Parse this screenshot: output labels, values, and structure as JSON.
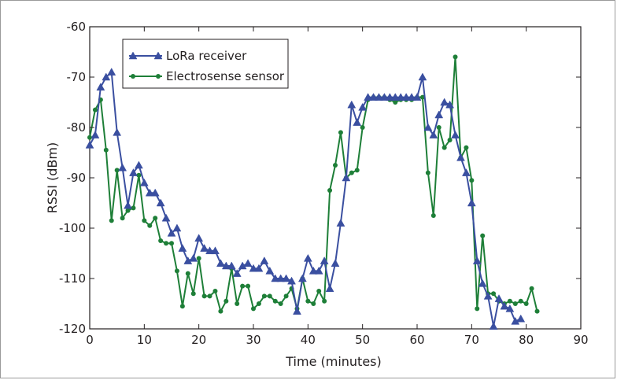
{
  "chart_data": {
    "type": "line",
    "title": "",
    "xlabel": "Time (minutes)",
    "ylabel": "RSSI (dBm)",
    "xlim": [
      0,
      90
    ],
    "ylim": [
      -120,
      -60
    ],
    "xticks": [
      0,
      10,
      20,
      30,
      40,
      50,
      60,
      70,
      80,
      90
    ],
    "yticks": [
      -60,
      -70,
      -80,
      -90,
      -100,
      -110,
      -120
    ],
    "grid": false,
    "legend_position": "top-left",
    "series": [
      {
        "name": "LoRa receiver",
        "color": "#3a4fa0",
        "marker": "triangle",
        "x": [
          0,
          1,
          2,
          3,
          4,
          5,
          6,
          7,
          8,
          9,
          10,
          11,
          12,
          13,
          14,
          15,
          16,
          17,
          18,
          19,
          20,
          21,
          22,
          23,
          24,
          25,
          26,
          27,
          28,
          29,
          30,
          31,
          32,
          33,
          34,
          35,
          36,
          37,
          38,
          39,
          40,
          41,
          42,
          43,
          44,
          45,
          46,
          47,
          48,
          49,
          50,
          51,
          52,
          53,
          54,
          55,
          56,
          57,
          58,
          59,
          60,
          61,
          62,
          63,
          64,
          65,
          66,
          67,
          68,
          69,
          70,
          71,
          72,
          73,
          74,
          75,
          76,
          77,
          78,
          79
        ],
        "y": [
          -83.5,
          -81.5,
          -72,
          -70,
          -69,
          -81,
          -88,
          -95.5,
          -89,
          -87.5,
          -91,
          -93,
          -93,
          -95,
          -98,
          -101,
          -100,
          -104,
          -106.5,
          -106,
          -102,
          -104,
          -104.5,
          -104.5,
          -107,
          -107.5,
          -107.5,
          -109,
          -107.5,
          -107,
          -108,
          -108,
          -106.5,
          -108.5,
          -110,
          -110,
          -110,
          -110.5,
          -116.5,
          -110,
          -106,
          -108.5,
          -108.5,
          -106.5,
          -112,
          -107,
          -99,
          -90,
          -75.5,
          -79,
          -76,
          -74,
          -74,
          -74,
          -74,
          -74,
          -74,
          -74,
          -74,
          -74,
          -74,
          -70,
          -80,
          -81.5,
          -77.5,
          -75,
          -75.5,
          -81.5,
          -86,
          -89,
          -95,
          -106.5,
          -111,
          -113.5,
          -119.5,
          -114,
          -115.5,
          -116,
          -118.5,
          -118
        ]
      },
      {
        "name": "Electrosense sensor",
        "color": "#1e7f38",
        "marker": "circle",
        "x": [
          0,
          1,
          2,
          3,
          4,
          5,
          6,
          7,
          8,
          9,
          10,
          11,
          12,
          13,
          14,
          15,
          16,
          17,
          18,
          19,
          20,
          21,
          22,
          23,
          24,
          25,
          26,
          27,
          28,
          29,
          30,
          31,
          32,
          33,
          34,
          35,
          36,
          37,
          38,
          39,
          40,
          41,
          42,
          43,
          44,
          45,
          46,
          47,
          48,
          49,
          50,
          51,
          52,
          53,
          54,
          55,
          56,
          57,
          58,
          59,
          60,
          61,
          62,
          63,
          64,
          65,
          66,
          67,
          68,
          69,
          70,
          71,
          72,
          73,
          74,
          75,
          76,
          77,
          78,
          79,
          80,
          81,
          82
        ],
        "y": [
          -82,
          -76.5,
          -74.5,
          -84.5,
          -98.5,
          -88.5,
          -98,
          -96.5,
          -96,
          -89.5,
          -98.5,
          -99.5,
          -98,
          -102.5,
          -103,
          -103,
          -108.5,
          -115.5,
          -109,
          -113,
          -106,
          -113.5,
          -113.5,
          -112.5,
          -116.5,
          -114.5,
          -108,
          -115,
          -111.5,
          -111.5,
          -116,
          -115,
          -113.5,
          -113.5,
          -114.5,
          -115,
          -113.5,
          -112,
          -116,
          -110,
          -114.5,
          -115,
          -112.5,
          -114.5,
          -92.5,
          -87.5,
          -81,
          -90,
          -89,
          -88.5,
          -80,
          -74.5,
          -74,
          -74,
          -74,
          -74.5,
          -75,
          -74.5,
          -74.5,
          -74.5,
          -74,
          -74,
          -89,
          -97.5,
          -80,
          -84,
          -82.5,
          -66,
          -86,
          -84,
          -90.5,
          -116,
          -101.5,
          -113,
          -113,
          -114.5,
          -115,
          -114.5,
          -115,
          -114.5,
          -115,
          -112,
          -116.5
        ]
      }
    ]
  }
}
